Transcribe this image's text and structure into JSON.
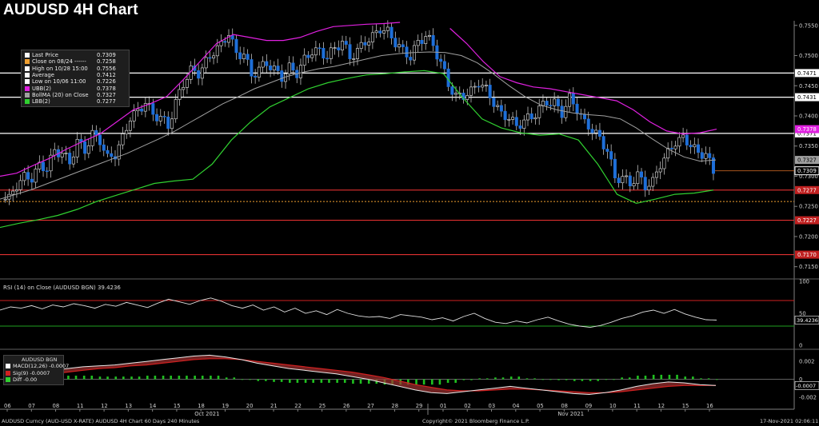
{
  "title": "AUDUSD 4H Chart",
  "legend": {
    "rows": [
      {
        "label": "Last Price",
        "value": "0.7309",
        "color": "#ffffff"
      },
      {
        "label": "Close on 08/24 ------",
        "value": "0.7258",
        "color": "#f0a030"
      },
      {
        "label": "High on 10/28 15:00",
        "value": "0.7556",
        "color": "#ffffff"
      },
      {
        "label": "Average",
        "value": "0.7412",
        "color": "#ffffff"
      },
      {
        "label": "Low on 10/06 11:00",
        "value": "0.7226",
        "color": "#ffffff"
      },
      {
        "label": "UBB(2)",
        "value": "0.7378",
        "color": "#e020e0"
      },
      {
        "label": "BollMA (20) on Close",
        "value": "0.7327",
        "color": "#a0a0a0"
      },
      {
        "label": "LBB(2)",
        "value": "0.7277",
        "color": "#30d030"
      }
    ]
  },
  "rsi_panel": {
    "title": "RSI (14) on Close (AUDUSD BGN) 39.4236",
    "value_label": "39.4236"
  },
  "macd_panel": {
    "title": "AUDUSD BGN",
    "rows": [
      {
        "label": "MACD(12,26)",
        "value": "-0.0007",
        "color": "#ffffff"
      },
      {
        "label": "Sig(9)",
        "value": "-0.0007",
        "color": "#d02020"
      },
      {
        "label": "Diff",
        "value": "-0.00",
        "color": "#30d030"
      }
    ],
    "value_label": "-0.0007"
  },
  "footer": {
    "left": "AUDUSD Curncy (AUD-USD X-RATE) AUDUSD 4H Chart 60 Days 240 Minutes",
    "center": "Copyright© 2021 Bloomberg Finance L.P.",
    "right": "17-Nov-2021 02:06:11"
  },
  "chart_data": {
    "type": "candlestick",
    "y_ticks": [
      "0.7550",
      "0.7500",
      "0.7450",
      "0.7400",
      "0.7350",
      "0.7300",
      "0.7250",
      "0.7200",
      "0.7150"
    ],
    "ylim": [
      0.7135,
      0.7555
    ],
    "x_ticks": [
      "06",
      "07",
      "08",
      "11",
      "12",
      "13",
      "14",
      "15",
      "18",
      "19",
      "20",
      "21",
      "22",
      "25",
      "26",
      "27",
      "28",
      "29",
      "01",
      "02",
      "03",
      "04",
      "05",
      "08",
      "09",
      "10",
      "11",
      "12",
      "15",
      "16"
    ],
    "month_labels": [
      {
        "label": "Oct 2021",
        "at": 8
      },
      {
        "label": "Nov 2021",
        "at": 23
      }
    ],
    "horizontal_levels": [
      {
        "value": 0.7471,
        "label": "0.7471",
        "color": "#ffffff",
        "style": "solid"
      },
      {
        "value": 0.7431,
        "label": "0.7431",
        "color": "#ffffff",
        "style": "solid"
      },
      {
        "value": 0.7371,
        "label": "0.7371",
        "color": "#ffffff",
        "style": "solid"
      },
      {
        "value": 0.7277,
        "label": "0.7277",
        "color": "#e03030",
        "style": "solid"
      },
      {
        "value": 0.7258,
        "label": "",
        "color": "#f0a030",
        "style": "dotted"
      },
      {
        "value": 0.7227,
        "label": "0.7227",
        "color": "#e03030",
        "style": "solid"
      },
      {
        "value": 0.717,
        "label": "0.7170",
        "color": "#e03030",
        "style": "solid"
      }
    ],
    "price_tags": [
      {
        "value": 0.7378,
        "label": "0.7378",
        "color": "#e020e0"
      },
      {
        "value": 0.7327,
        "label": "0.7327",
        "color": "#a0a0a0"
      },
      {
        "value": 0.7309,
        "label": "0.7309",
        "color": "#ffffff"
      }
    ],
    "close_path": [
      0.7262,
      0.7285,
      0.73,
      0.7295,
      0.732,
      0.731,
      0.7345,
      0.7335,
      0.7325,
      0.7355,
      0.7345,
      0.7368,
      0.736,
      0.733,
      0.7335,
      0.7365,
      0.7395,
      0.741,
      0.742,
      0.7405,
      0.7395,
      0.7385,
      0.742,
      0.7455,
      0.7475,
      0.747,
      0.749,
      0.7505,
      0.752,
      0.7535,
      0.7505,
      0.75,
      0.747,
      0.7475,
      0.749,
      0.7475,
      0.7465,
      0.748,
      0.747,
      0.7495,
      0.7505,
      0.751,
      0.7495,
      0.7515,
      0.752,
      0.75,
      0.7505,
      0.7525,
      0.753,
      0.7545,
      0.754,
      0.752,
      0.751,
      0.7495,
      0.7525,
      0.753,
      0.752,
      0.7485,
      0.7455,
      0.743,
      0.7435,
      0.744,
      0.7455,
      0.7445,
      0.742,
      0.7405,
      0.7395,
      0.7385,
      0.739,
      0.74,
      0.741,
      0.7425,
      0.742,
      0.7405,
      0.743,
      0.741,
      0.739,
      0.7375,
      0.7365,
      0.734,
      0.73,
      0.7295,
      0.729,
      0.73,
      0.7285,
      0.729,
      0.732,
      0.734,
      0.7355,
      0.7365,
      0.735,
      0.734,
      0.7335,
      0.7309
    ],
    "ma_path": [
      0.7262,
      0.727,
      0.7278,
      0.7288,
      0.7298,
      0.7308,
      0.7318,
      0.7328,
      0.7338,
      0.735,
      0.7362,
      0.7375,
      0.739,
      0.7405,
      0.742,
      0.7432,
      0.7445,
      0.7455,
      0.7465,
      0.7472,
      0.7478,
      0.7482,
      0.7488,
      0.7494,
      0.75,
      0.7503,
      0.7505,
      0.7506,
      0.7505,
      0.75,
      0.7488,
      0.747,
      0.745,
      0.7432,
      0.7418,
      0.741,
      0.7405,
      0.7402,
      0.74,
      0.7395,
      0.738,
      0.7362,
      0.7345,
      0.7332,
      0.7325,
      0.7327
    ],
    "ubb_path": [
      0.73,
      0.7305,
      0.7318,
      0.733,
      0.7345,
      0.7358,
      0.737,
      0.739,
      0.741,
      0.742,
      0.7432,
      0.746,
      0.749,
      0.752,
      0.7535,
      0.753,
      0.7525,
      0.7525,
      0.753,
      0.754,
      0.7548,
      0.755,
      0.7552,
      0.7553,
      0.7555,
      null,
      null,
      0.7545,
      0.752,
      0.749,
      0.7465,
      0.7455,
      0.7448,
      0.7445,
      0.744,
      0.7435,
      0.743,
      0.7425,
      0.741,
      0.739,
      0.7375,
      0.737,
      0.7372,
      0.7378
    ],
    "lbb_path": [
      0.7215,
      0.7222,
      0.7228,
      0.7235,
      0.7245,
      0.7258,
      0.7268,
      0.7278,
      0.7288,
      0.7292,
      0.7295,
      0.732,
      0.736,
      0.739,
      0.7415,
      0.743,
      0.7445,
      0.7455,
      0.7462,
      0.7468,
      0.747,
      0.7473,
      0.7475,
      0.747,
      0.743,
      0.7395,
      0.738,
      0.7372,
      0.7368,
      0.737,
      0.736,
      0.732,
      0.727,
      0.7255,
      0.7262,
      0.727,
      0.7272,
      0.7277
    ],
    "rsi": {
      "ylim": [
        0,
        100
      ],
      "ticks": [
        100,
        50,
        0
      ],
      "levels": [
        70,
        30
      ],
      "values": [
        55,
        60,
        58,
        62,
        57,
        63,
        60,
        65,
        62,
        58,
        64,
        61,
        67,
        63,
        59,
        66,
        72,
        68,
        64,
        70,
        74,
        69,
        62,
        58,
        63,
        55,
        60,
        52,
        58,
        50,
        54,
        48,
        56,
        50,
        46,
        44,
        45,
        42,
        48,
        46,
        44,
        40,
        43,
        38,
        45,
        50,
        42,
        36,
        34,
        38,
        35,
        40,
        44,
        38,
        33,
        30,
        28,
        31,
        36,
        42,
        46,
        52,
        55,
        50,
        56,
        49,
        44,
        40,
        39.4
      ]
    },
    "macd": {
      "ylim": [
        -0.003,
        0.003
      ],
      "ticks": [
        "0.002",
        "0",
        "-0.002"
      ],
      "macd": [
        0.0002,
        0.0005,
        0.0008,
        0.001,
        0.0012,
        0.0014,
        0.0015,
        0.0016,
        0.0018,
        0.002,
        0.0022,
        0.0024,
        0.0026,
        0.0027,
        0.0025,
        0.0022,
        0.0018,
        0.0015,
        0.0012,
        0.001,
        0.0008,
        0.0006,
        0.0003,
        0.0,
        -0.0004,
        -0.0008,
        -0.0012,
        -0.0015,
        -0.0016,
        -0.0014,
        -0.0012,
        -0.001,
        -0.0008,
        -0.001,
        -0.0012,
        -0.0014,
        -0.0016,
        -0.0017,
        -0.0015,
        -0.0012,
        -0.0008,
        -0.0005,
        -0.0003,
        -0.0004,
        -0.0006,
        -0.0007
      ],
      "signal": [
        0.0,
        0.0002,
        0.0004,
        0.0006,
        0.0008,
        0.001,
        0.0012,
        0.0013,
        0.0015,
        0.0016,
        0.0018,
        0.002,
        0.0022,
        0.0023,
        0.0023,
        0.0022,
        0.002,
        0.0018,
        0.0016,
        0.0014,
        0.0012,
        0.001,
        0.0008,
        0.0005,
        0.0002,
        -0.0002,
        -0.0006,
        -0.0009,
        -0.0012,
        -0.0013,
        -0.0013,
        -0.0012,
        -0.0011,
        -0.0011,
        -0.0012,
        -0.0013,
        -0.0014,
        -0.0015,
        -0.0015,
        -0.0014,
        -0.0012,
        -0.001,
        -0.0008,
        -0.0007,
        -0.0007,
        -0.0007
      ],
      "diff": [
        0.0002,
        0.0003,
        0.0004,
        0.0004,
        0.0004,
        0.0004,
        0.0003,
        0.0003,
        0.0003,
        0.0004,
        0.0004,
        0.0004,
        0.0004,
        0.0004,
        0.0002,
        0.0,
        -0.0002,
        -0.0003,
        -0.0004,
        -0.0004,
        -0.0004,
        -0.0004,
        -0.0005,
        -0.0005,
        -0.0006,
        -0.0006,
        -0.0006,
        -0.0006,
        -0.0004,
        -0.0001,
        0.0001,
        0.0002,
        0.0003,
        0.0001,
        0.0,
        -0.0001,
        -0.0002,
        -0.0002,
        0.0,
        0.0002,
        0.0004,
        0.0005,
        0.0005,
        0.0003,
        0.0001,
        0.0
      ]
    }
  }
}
